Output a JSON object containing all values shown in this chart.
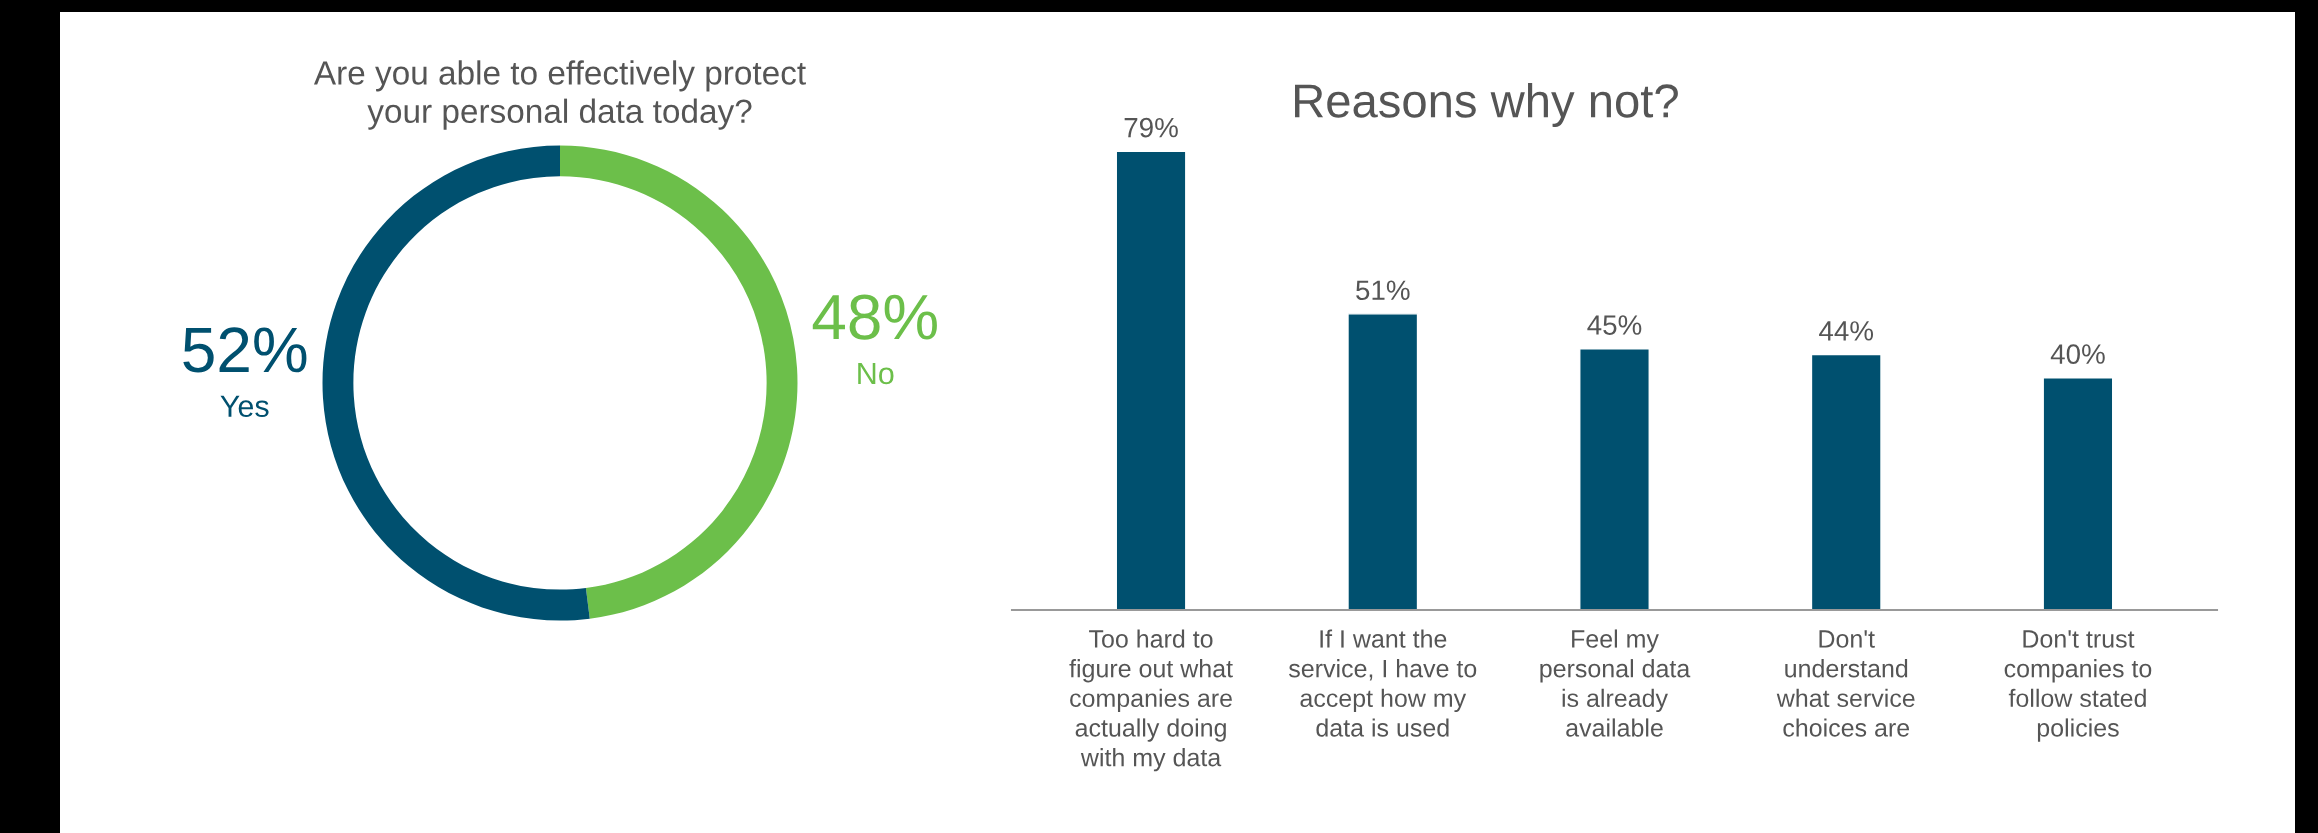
{
  "chart_data": [
    {
      "type": "donut",
      "title": "Are you able to effectively protect\nyour personal data today?",
      "categories": [
        "No",
        "Yes"
      ],
      "values": [
        48,
        52
      ],
      "colors": [
        "#6cbf4a",
        "#00506f"
      ],
      "value_labels": [
        "48%",
        "52%"
      ]
    },
    {
      "type": "bar",
      "title": "Reasons why not?",
      "categories": [
        "Too hard to\nfigure out what\ncompanies are\nactually doing\nwith my data",
        "If I want the\nservice, I have to\naccept how my\ndata is used",
        "Feel my\npersonal data\nis already\navailable",
        "Don't\nunderstand\nwhat service\nchoices are",
        "Don't trust\ncompanies to\nfollow stated\npolicies"
      ],
      "values": [
        79,
        51,
        45,
        44,
        40
      ],
      "color": "#00506f",
      "value_labels": [
        "79%",
        "51%",
        "45%",
        "44%",
        "40%"
      ],
      "legend": false,
      "grid": false
    }
  ]
}
